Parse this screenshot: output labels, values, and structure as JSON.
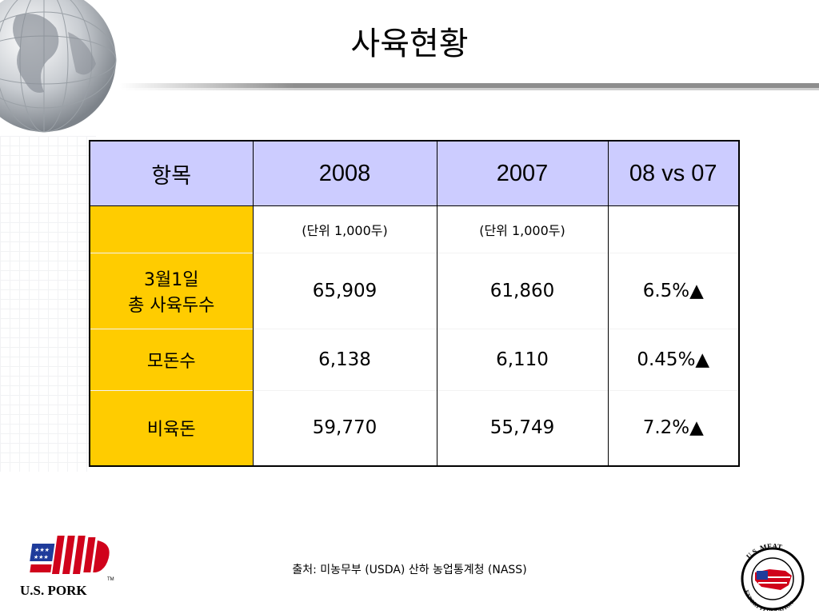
{
  "title": "사육현황",
  "table": {
    "headers": [
      "항목",
      "2008",
      "2007",
      "08 vs 07"
    ],
    "unit_row": [
      "",
      "(단위 1,000두)",
      "(단위 1,000두)",
      ""
    ],
    "rows": [
      {
        "label_line1": "3월1일",
        "label_line2": "총 사육두수",
        "v2008": "65,909",
        "v2007": "61,860",
        "change": "6.5%▲"
      },
      {
        "label": "모돈수",
        "v2008": "6,138",
        "v2007": "6,110",
        "change": "0.45%▲"
      },
      {
        "label": "비육돈",
        "v2008": "59,770",
        "v2007": "55,749",
        "change": "7.2%▲"
      }
    ]
  },
  "footer": "출처: 미농무부 (USDA) 산하 농업통계청 (NASS)",
  "logos": {
    "left": "U.S. PORK",
    "left_tm": "TM",
    "right_top": "U.S. MEAT",
    "right_bottom": "EXPORT FEDERATION"
  },
  "colors": {
    "header_bg": "#ccccff",
    "label_bg": "#ffcc00"
  },
  "icons": [
    "globe-icon",
    "flag-pig-logo",
    "meat-federation-seal"
  ]
}
